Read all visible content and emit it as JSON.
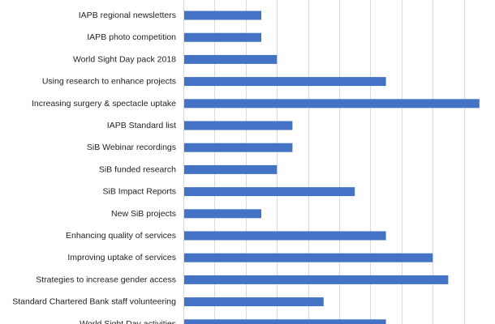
{
  "chart_data": {
    "type": "bar",
    "orientation": "horizontal",
    "title": "",
    "xlabel": "",
    "ylabel": "",
    "categories": [
      "IAPB regional newsletters",
      "IAPB photo competition",
      "World Sight Day pack 2018",
      "Using research to enhance projects",
      "Increasing surgery & spectacle uptake",
      "IAPB Standard list",
      "SiB Webinar recordings",
      "SiB funded research",
      "SiB Impact Reports",
      "New SiB projects",
      "Enhancing quality of services",
      "Improving uptake of services",
      "Strategies to increase gender access",
      "Standard Chartered Bank staff volunteering",
      "World Sight Day activities"
    ],
    "values": [
      5,
      5,
      6,
      13,
      19,
      7,
      7,
      6,
      11,
      5,
      13,
      16,
      17,
      9,
      13
    ],
    "xlim": [
      0,
      20
    ],
    "grid": true,
    "colors": {
      "bar": "#4472C4",
      "grid": "#D9D9D9",
      "text": "#222222",
      "background": "#FFFFFF"
    }
  }
}
